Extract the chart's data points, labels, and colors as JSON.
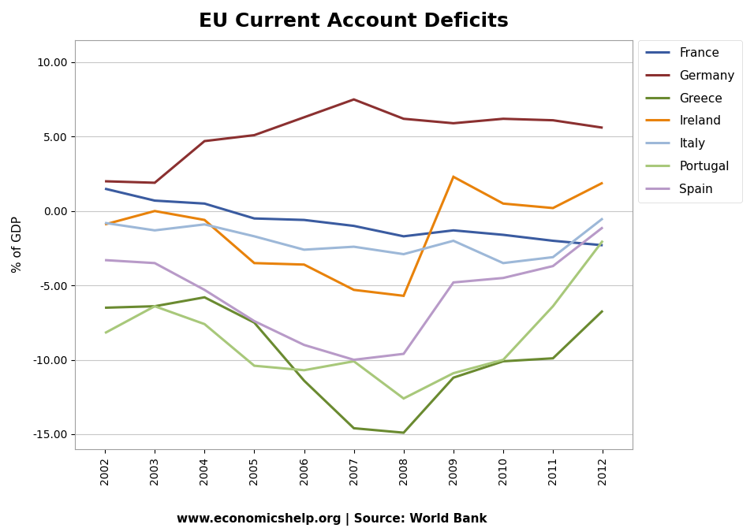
{
  "title": "EU Current Account Deficits",
  "ylabel": "% of GDP",
  "source_text": "www.economicshelp.org | Source: World Bank",
  "years": [
    2002,
    2003,
    2004,
    2005,
    2006,
    2007,
    2008,
    2009,
    2010,
    2011,
    2012
  ],
  "series": {
    "France": {
      "values": [
        1.5,
        0.7,
        0.5,
        -0.5,
        -0.6,
        -1.0,
        -1.7,
        -1.3,
        -1.6,
        -2.0,
        -2.3
      ],
      "color": "#3A5BA0",
      "linewidth": 2.2
    },
    "Germany": {
      "values": [
        2.0,
        1.9,
        4.7,
        5.1,
        6.3,
        7.5,
        6.2,
        5.9,
        6.2,
        6.1,
        5.6
      ],
      "color": "#8B3030",
      "linewidth": 2.2
    },
    "Greece": {
      "values": [
        -6.5,
        -6.4,
        -5.8,
        -7.5,
        -11.4,
        -14.6,
        -14.9,
        -11.2,
        -10.1,
        -9.9,
        -6.7
      ],
      "color": "#6A8A30",
      "linewidth": 2.2
    },
    "Ireland": {
      "values": [
        -0.9,
        0.0,
        -0.6,
        -3.5,
        -3.6,
        -5.3,
        -5.7,
        2.3,
        0.5,
        0.2,
        1.9
      ],
      "color": "#E8820A",
      "linewidth": 2.2
    },
    "Italy": {
      "values": [
        -0.8,
        -1.3,
        -0.9,
        -1.7,
        -2.6,
        -2.4,
        -2.9,
        -2.0,
        -3.5,
        -3.1,
        -0.5
      ],
      "color": "#9DB8D8",
      "linewidth": 2.2
    },
    "Portugal": {
      "values": [
        -8.2,
        -6.4,
        -7.6,
        -10.4,
        -10.7,
        -10.1,
        -12.6,
        -10.9,
        -10.0,
        -6.4,
        -2.0
      ],
      "color": "#A8C87A",
      "linewidth": 2.2
    },
    "Spain": {
      "values": [
        -3.3,
        -3.5,
        -5.3,
        -7.4,
        -9.0,
        -10.0,
        -9.6,
        -4.8,
        -4.5,
        -3.7,
        -1.1
      ],
      "color": "#B89AC8",
      "linewidth": 2.2
    }
  },
  "ylim": [
    -16.0,
    11.5
  ],
  "yticks": [
    -15.0,
    -10.0,
    -5.0,
    0.0,
    5.0,
    10.0
  ],
  "background_color": "#FFFFFF",
  "grid_color": "#C8C8C8",
  "legend_order": [
    "France",
    "Germany",
    "Greece",
    "Ireland",
    "Italy",
    "Portugal",
    "Spain"
  ]
}
